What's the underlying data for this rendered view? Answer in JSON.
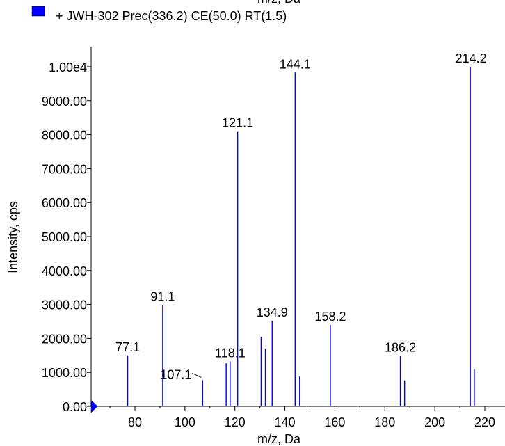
{
  "top_label_fragment": "m/z, Da",
  "legend": {
    "text": "+ JWH-302 Prec(336.2) CE(50.0) RT(1.5)",
    "color": "#0000ff"
  },
  "colors": {
    "series": "#0000ff",
    "axis": "#000000"
  },
  "chart_data": {
    "type": "bar",
    "xlabel": "m/z, Da",
    "ylabel": "Intensity, cps",
    "xlim": [
      64.5,
      219
    ],
    "ylim": [
      0,
      10000
    ],
    "x_ticks": [
      "80",
      "100",
      "120",
      "140",
      "160",
      "180",
      "200",
      "220"
    ],
    "y_ticks": [
      "0.00",
      "1000.00",
      "2000.00",
      "3000.00",
      "4000.00",
      "5000.00",
      "6000.00",
      "7000.00",
      "8000.00",
      "9000.00",
      "1.00e4"
    ],
    "peaks": [
      {
        "x": 77.1,
        "y": 1500,
        "label": "77.1"
      },
      {
        "x": 91.1,
        "y": 2980,
        "label": "91.1"
      },
      {
        "x": 107.1,
        "y": 770,
        "label": "107.1"
      },
      {
        "x": 116.5,
        "y": 1270
      },
      {
        "x": 118.1,
        "y": 1320,
        "label": "118.1"
      },
      {
        "x": 121.1,
        "y": 8100,
        "label": "121.1"
      },
      {
        "x": 130.5,
        "y": 2050
      },
      {
        "x": 132.2,
        "y": 1700
      },
      {
        "x": 134.9,
        "y": 2520,
        "label": "134.9"
      },
      {
        "x": 144.1,
        "y": 9830,
        "label": "144.1"
      },
      {
        "x": 145.9,
        "y": 880
      },
      {
        "x": 158.2,
        "y": 2400,
        "label": "158.2"
      },
      {
        "x": 186.2,
        "y": 1490,
        "label": "186.2"
      },
      {
        "x": 187.9,
        "y": 760
      },
      {
        "x": 214.2,
        "y": 10000,
        "label": "214.2"
      },
      {
        "x": 215.8,
        "y": 1090
      }
    ]
  }
}
